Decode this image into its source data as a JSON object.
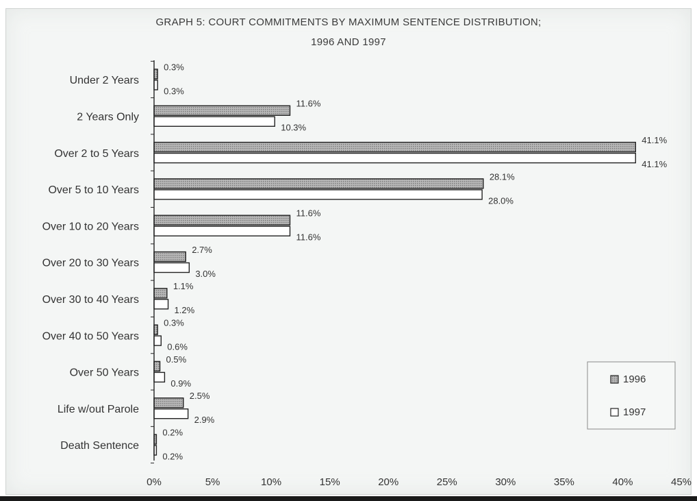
{
  "chart_data": {
    "type": "bar",
    "orientation": "horizontal",
    "title": "GRAPH 5: COURT COMMITMENTS BY MAXIMUM SENTENCE DISTRIBUTION;",
    "subtitle": "1996 AND 1997",
    "categories": [
      "Under 2 Years",
      "2 Years Only",
      "Over 2 to 5 Years",
      "Over 5 to 10 Years",
      "Over 10 to 20 Years",
      "Over 20 to 30 Years",
      "Over 30 to 40 Years",
      "Over 40 to 50 Years",
      "Over 50 Years",
      "Life w/out Parole",
      "Death Sentence"
    ],
    "series": [
      {
        "name": "1996",
        "values": [
          0.3,
          11.6,
          41.1,
          28.1,
          11.6,
          2.7,
          1.1,
          0.3,
          0.5,
          2.5,
          0.2
        ],
        "labels": [
          "0.3%",
          "11.6%",
          "41.1%",
          "28.1%",
          "11.6%",
          "2.7%",
          "1.1%",
          "0.3%",
          "0.5%",
          "2.5%",
          "0.2%"
        ],
        "color": "#a9a9a9",
        "pattern": "dotted-fill"
      },
      {
        "name": "1997",
        "values": [
          0.3,
          10.3,
          41.1,
          28.0,
          11.6,
          3.0,
          1.2,
          0.6,
          0.9,
          2.9,
          0.2
        ],
        "labels": [
          "0.3%",
          "10.3%",
          "41.1%",
          "28.0%",
          "11.6%",
          "3.0%",
          "1.2%",
          "0.6%",
          "0.9%",
          "2.9%",
          "0.2%"
        ],
        "color": "#ffffff",
        "pattern": "solid"
      }
    ],
    "xaxis": {
      "range": [
        0,
        45
      ],
      "ticks": [
        0,
        5,
        10,
        15,
        20,
        25,
        30,
        35,
        40,
        45
      ],
      "tick_labels": [
        "0%",
        "5%",
        "10%",
        "15%",
        "20%",
        "25%",
        "30%",
        "35%",
        "40%",
        "45%"
      ]
    },
    "grid": false,
    "legend": {
      "position": "bottom-right",
      "boxed": true
    }
  }
}
